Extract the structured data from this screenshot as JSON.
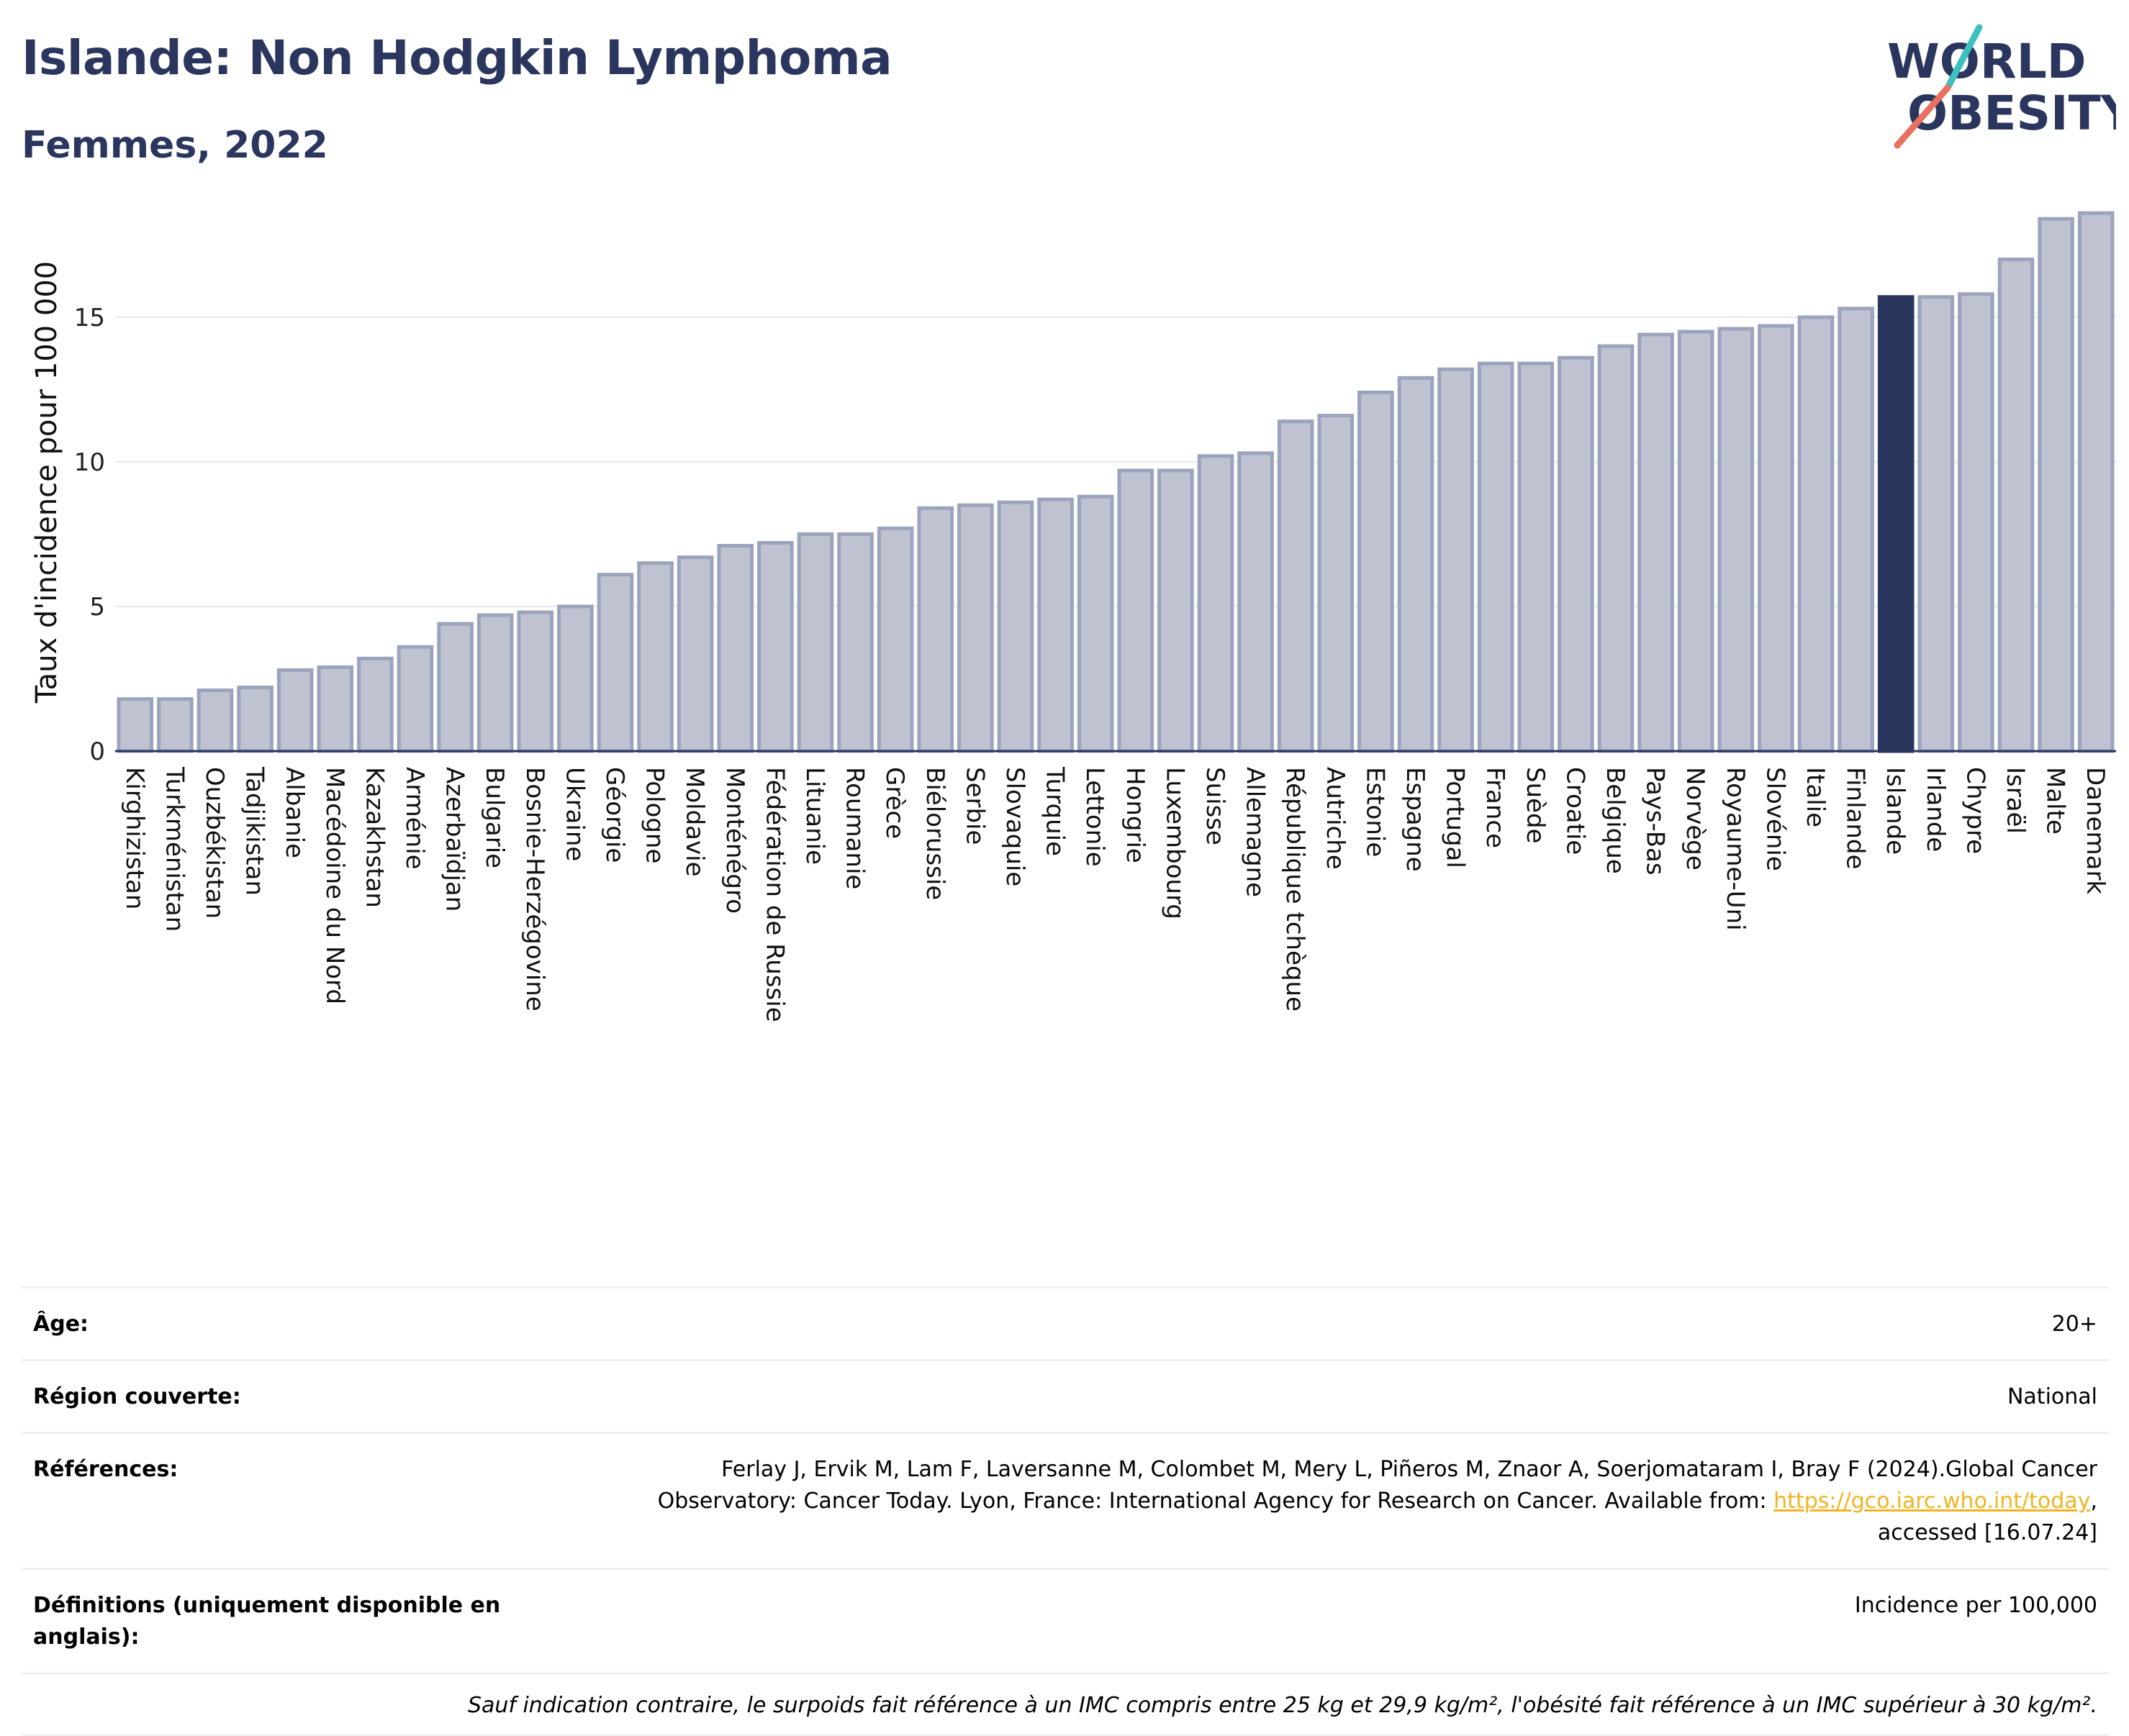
{
  "header": {
    "title": "Islande: Non Hodgkin Lymphoma",
    "subtitle": "Femmes, 2022",
    "logo_text_line1": "WORLD",
    "logo_text_line2": "OBESITY"
  },
  "colors": {
    "bar": "#bfc3d1",
    "bar_border": "#9ba3bd",
    "highlight": "#2b365e",
    "grid": "#e6e8ee",
    "logo_teal": "#3bbfbf",
    "logo_coral": "#e8705f"
  },
  "chart_data": {
    "type": "bar",
    "title": "Islande: Non Hodgkin Lymphoma",
    "subtitle": "Femmes, 2022",
    "ylabel": "Taux d'incidence pour 100 000",
    "xlabel": "",
    "ylim": [
      0,
      19.5
    ],
    "yticks": [
      0,
      5,
      10,
      15
    ],
    "grid": true,
    "highlight": "Islande",
    "categories": [
      "Kirghizistan",
      "Turkménistan",
      "Ouzbékistan",
      "Tadjikistan",
      "Albanie",
      "Macédoine du Nord",
      "Kazakhstan",
      "Arménie",
      "Azerbaïdjan",
      "Bulgarie",
      "Bosnie-Herzégovine",
      "Ukraine",
      "Géorgie",
      "Pologne",
      "Moldavie",
      "Monténégro",
      "Fédération de Russie",
      "Lituanie",
      "Roumanie",
      "Grèce",
      "Biélorussie",
      "Serbie",
      "Slovaquie",
      "Turquie",
      "Lettonie",
      "Hongrie",
      "Luxembourg",
      "Suisse",
      "Allemagne",
      "République tchèque",
      "Autriche",
      "Estonie",
      "Espagne",
      "Portugal",
      "France",
      "Suède",
      "Croatie",
      "Belgique",
      "Pays-Bas",
      "Norvège",
      "Royaume-Uni",
      "Slovénie",
      "Italie",
      "Finlande",
      "Islande",
      "Irlande",
      "Chypre",
      "Israël",
      "Malte",
      "Danemark"
    ],
    "values": [
      1.8,
      1.8,
      2.1,
      2.2,
      2.8,
      2.9,
      3.2,
      3.6,
      4.4,
      4.7,
      4.8,
      5.0,
      6.1,
      6.5,
      6.7,
      7.1,
      7.2,
      7.5,
      7.5,
      7.7,
      8.4,
      8.5,
      8.6,
      8.7,
      8.8,
      9.7,
      9.7,
      10.2,
      10.3,
      11.4,
      11.6,
      12.4,
      12.9,
      13.2,
      13.4,
      13.4,
      13.6,
      14.0,
      14.4,
      14.5,
      14.6,
      14.7,
      15.0,
      15.3,
      15.7,
      15.7,
      15.8,
      17.0,
      18.4,
      18.6
    ]
  },
  "meta": {
    "age_label": "Âge:",
    "age_value": "20+",
    "region_label": "Région couverte:",
    "region_value": "National",
    "refs_label": "Références:",
    "refs_text_1": "Ferlay J, Ervik M, Lam F, Laversanne M, Colombet M, Mery L, Piñeros M, Znaor A, Soerjomataram I, Bray F (2024).Global Cancer",
    "refs_text_2": "Observatory: Cancer Today. Lyon, France: International Agency for Research on Cancer. Available from: ",
    "refs_link": "https://gco.iarc.who.int/today",
    "refs_text_3": ",",
    "refs_text_4": "accessed [16.07.24]",
    "defs_label": "Définitions (uniquement disponible en anglais):",
    "defs_value": "Incidence per 100,000",
    "note": "Sauf indication contraire, le surpoids fait référence à un IMC compris entre 25 kg et 29,9 kg/m², l'obésité fait référence à un IMC supérieur à 30 kg/m²."
  }
}
